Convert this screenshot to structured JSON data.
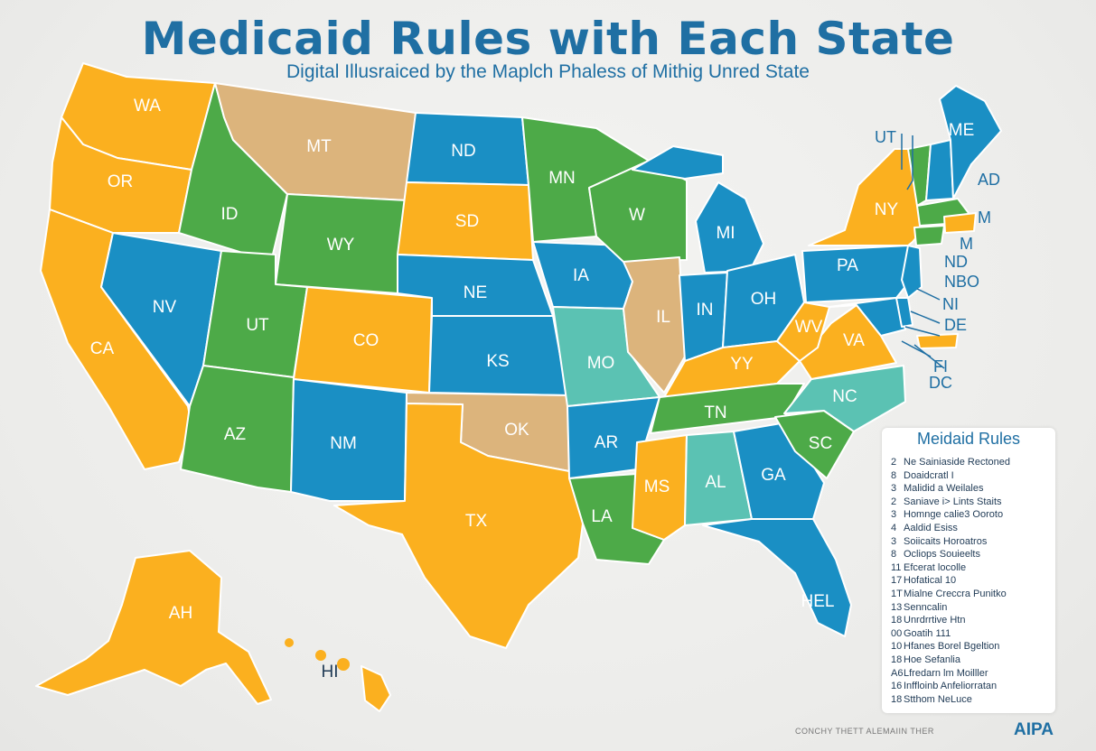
{
  "title": "Medicaid  Rules with Each State",
  "subtitle": "Digital Illusraiced by the Maplch Phaless of Mithig Unred State",
  "colors": {
    "orange": "#fbb01f",
    "blue": "#1a8fc4",
    "green": "#4daa48",
    "tan": "#dcb47c",
    "teal": "#5bc2b3",
    "text_blue": "#1f6fa3"
  },
  "states": [
    {
      "abbr": "WA",
      "color": "orange"
    },
    {
      "abbr": "OR",
      "color": "orange"
    },
    {
      "abbr": "CA",
      "color": "orange"
    },
    {
      "abbr": "ID",
      "color": "green"
    },
    {
      "abbr": "NV",
      "color": "blue"
    },
    {
      "abbr": "MT",
      "color": "tan"
    },
    {
      "abbr": "WY",
      "color": "green"
    },
    {
      "abbr": "UT",
      "color": "green"
    },
    {
      "abbr": "AZ",
      "color": "green"
    },
    {
      "abbr": "CO",
      "color": "orange"
    },
    {
      "abbr": "NM",
      "color": "blue"
    },
    {
      "abbr": "ND",
      "color": "blue"
    },
    {
      "abbr": "SD",
      "color": "orange"
    },
    {
      "abbr": "NE",
      "color": "blue"
    },
    {
      "abbr": "KS",
      "color": "blue"
    },
    {
      "abbr": "OK",
      "color": "tan"
    },
    {
      "abbr": "TX",
      "color": "orange"
    },
    {
      "abbr": "MN",
      "color": "green"
    },
    {
      "abbr": "IA",
      "color": "blue"
    },
    {
      "abbr": "MO",
      "color": "teal"
    },
    {
      "abbr": "AR",
      "color": "blue"
    },
    {
      "abbr": "LA",
      "color": "green"
    },
    {
      "abbr": "W",
      "color": "green"
    },
    {
      "abbr": "IL",
      "color": "tan"
    },
    {
      "abbr": "MI",
      "color": "blue"
    },
    {
      "abbr": "IN",
      "color": "blue"
    },
    {
      "abbr": "OH",
      "color": "blue"
    },
    {
      "abbr": "YY",
      "color": "orange"
    },
    {
      "abbr": "TN",
      "color": "green"
    },
    {
      "abbr": "MS",
      "color": "orange"
    },
    {
      "abbr": "AL",
      "color": "teal"
    },
    {
      "abbr": "GA",
      "color": "blue"
    },
    {
      "abbr": "HEL",
      "color": "blue"
    },
    {
      "abbr": "SC",
      "color": "green"
    },
    {
      "abbr": "NC",
      "color": "teal"
    },
    {
      "abbr": "VA",
      "color": "orange"
    },
    {
      "abbr": "WV",
      "color": "orange"
    },
    {
      "abbr": "PA",
      "color": "blue"
    },
    {
      "abbr": "NY",
      "color": "orange"
    },
    {
      "abbr": "ME",
      "color": "blue"
    },
    {
      "abbr": "AH",
      "color": "orange"
    },
    {
      "abbr": "HI",
      "color": "orange"
    }
  ],
  "side_labels": [
    "UT",
    "AD",
    "M",
    "M",
    "ND",
    "NBO",
    "NI",
    "DE",
    "FI",
    "DC"
  ],
  "legend": {
    "title": "Meidaid Rules",
    "items": [
      {
        "n": "2",
        "text": "Ne Sainiaside Rectoned"
      },
      {
        "n": "8",
        "text": "Doaidcratl I"
      },
      {
        "n": "3",
        "text": "Malidid a Weilales"
      },
      {
        "n": "2",
        "text": "Saniave i> Lints Staits"
      },
      {
        "n": "3",
        "text": "Homnge calie3 Ooroto"
      },
      {
        "n": "4",
        "text": "Aaldid Esiss"
      },
      {
        "n": "3",
        "text": "Soiicaits Horoatros"
      },
      {
        "n": "8",
        "text": "Ocliops Souieelts"
      },
      {
        "n": "11",
        "text": "Efcerat locolle"
      },
      {
        "n": "17",
        "text": "Hofatical 10"
      },
      {
        "n": "1T",
        "text": "Mialne Creccra Punitko"
      },
      {
        "n": "13",
        "text": "Senncalin"
      },
      {
        "n": "18",
        "text": "Unrdrrtive Htn"
      },
      {
        "n": "00",
        "text": "Goatih 111"
      },
      {
        "n": "10",
        "text": "Hfanes Borel Bgeltion"
      },
      {
        "n": "18",
        "text": "Hoe Sefanlia"
      },
      {
        "n": "A6",
        "text": "Lfredarn lm Moilller"
      },
      {
        "n": "16",
        "text": "Inffloinb Anfeliorratan"
      },
      {
        "n": "18",
        "text": "Stthom NeLuce"
      }
    ]
  },
  "footer": "CONCHY THETT ALEMAIIN THER",
  "brand": "AIPA"
}
